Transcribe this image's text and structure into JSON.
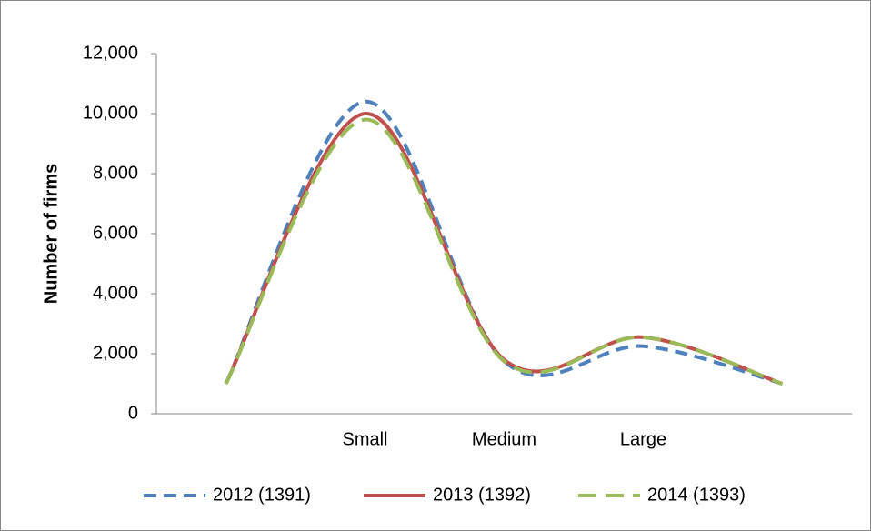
{
  "chart_data": {
    "type": "line",
    "y_label": "Number of firms",
    "categories": [
      null,
      "Small",
      "Medium",
      "Large",
      null
    ],
    "series": [
      {
        "name": "2012 (1391)",
        "color": "#4f81bd",
        "style": "dashed",
        "values": [
          1000,
          10400,
          1750,
          2250,
          1000
        ]
      },
      {
        "name": "2013 (1392)",
        "color": "#c0504d",
        "style": "solid",
        "values": [
          1000,
          10000,
          1800,
          2550,
          1000
        ]
      },
      {
        "name": "2014 (1393)",
        "color": "#9bbb59",
        "style": "long-dashed",
        "values": [
          1000,
          9800,
          1750,
          2550,
          1000
        ]
      }
    ],
    "ylim": [
      0,
      12000
    ],
    "yticks": [
      0,
      {
        "value": 2000,
        "label": "2,000"
      },
      {
        "value": 4000,
        "label": "4,000"
      },
      {
        "value": 6000,
        "label": "6,000"
      },
      {
        "value": 8000,
        "label": "8,000"
      },
      {
        "value": 10000,
        "label": "10,000"
      },
      {
        "value": 12000,
        "label": "12,000"
      }
    ],
    "smooth": true,
    "legend": "bottom"
  }
}
